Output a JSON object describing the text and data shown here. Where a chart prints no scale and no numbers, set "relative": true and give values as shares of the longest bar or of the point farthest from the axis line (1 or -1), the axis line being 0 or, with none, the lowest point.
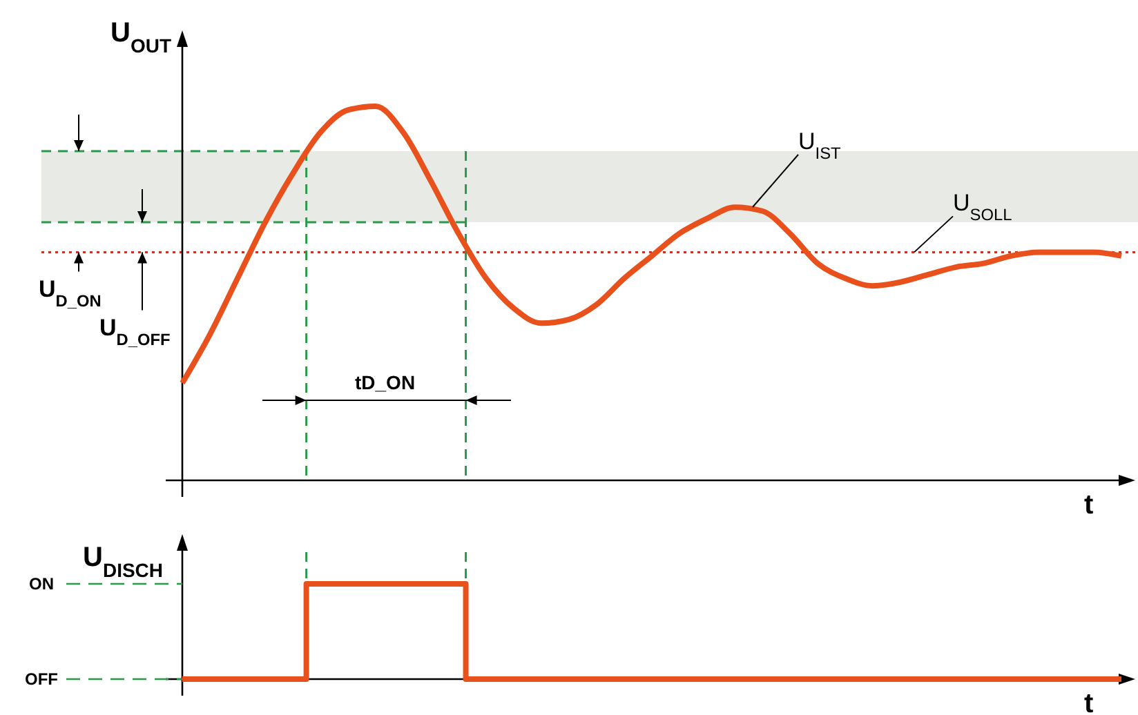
{
  "chart_data": [
    {
      "type": "line",
      "relative": true,
      "ylabel": "U$_{OUT}$",
      "xlabel": "t",
      "categories": [
        null,
        null,
        null,
        null,
        null,
        null,
        null,
        null,
        null,
        null,
        null,
        null,
        null,
        null,
        null,
        null,
        null,
        null,
        null,
        null,
        null,
        null,
        null,
        null,
        null,
        null,
        null,
        null,
        null,
        null,
        null,
        null,
        null,
        null,
        null
      ],
      "series": [
        {
          "name": "U$_{IST}$",
          "color": "#e8501c",
          "values": [
            0.26,
            0.39,
            0.54,
            0.69,
            0.82,
            0.93,
            0.99,
            1,
            0.93,
            0.8,
            0.66,
            0.54,
            0.46,
            0.42,
            0.43,
            0.47,
            0.54,
            0.6,
            0.66,
            0.7,
            0.73,
            0.72,
            0.66,
            0.58,
            0.54,
            0.52,
            0.53,
            0.55,
            0.57,
            0.58,
            0.6,
            0.61,
            0.61,
            0.61,
            0.6
          ]
        }
      ],
      "ref_lines": [
        {
          "axis": "y",
          "value": 0.61,
          "label": "U$_{SOLL}$",
          "color": "#d03020",
          "line_style": "dotted"
        },
        {
          "axis": "y",
          "value": 0.88,
          "color": "#2a9a4a",
          "line_style": "dashed"
        },
        {
          "axis": "y",
          "value": 0.69,
          "color": "#2a9a4a",
          "line_style": "dashed"
        }
      ],
      "bands": [
        {
          "axis": "y",
          "from": 0.69,
          "to": 0.88,
          "color": "#e8eae6"
        }
      ],
      "annotations": [
        "U$_{D_ON}$",
        "U$_{D_OFF}$",
        "tD_ON"
      ]
    },
    {
      "type": "step",
      "relative": true,
      "ylabel": "U$_{DISCH}$",
      "xlabel": "t",
      "annotations": [
        "ON",
        "OFF"
      ],
      "categories": [
        null,
        null,
        null,
        null,
        null,
        null,
        null,
        null,
        null,
        null,
        null,
        null,
        null,
        null,
        null,
        null,
        null,
        null,
        null,
        null,
        null,
        null,
        null,
        null,
        null,
        null,
        null,
        null,
        null,
        null,
        null,
        null,
        null,
        null,
        null,
        null,
        null,
        null,
        null,
        null,
        null,
        null,
        null,
        null,
        null,
        null,
        null,
        null,
        null,
        null,
        null,
        null,
        null,
        null
      ],
      "series": [
        {
          "color": "#e8501c",
          "values": [
            0,
            0,
            0,
            0,
            0,
            0,
            0,
            1,
            1,
            1,
            1,
            1,
            1,
            1,
            1,
            1,
            0,
            0,
            0,
            0,
            0,
            0,
            0,
            0,
            0,
            0,
            0,
            0,
            0,
            0,
            0,
            0,
            0,
            0,
            0,
            0,
            0,
            0,
            0,
            0,
            0,
            0,
            0,
            0,
            0,
            0,
            0,
            0,
            0,
            0,
            0,
            0,
            0,
            0
          ]
        }
      ]
    }
  ]
}
